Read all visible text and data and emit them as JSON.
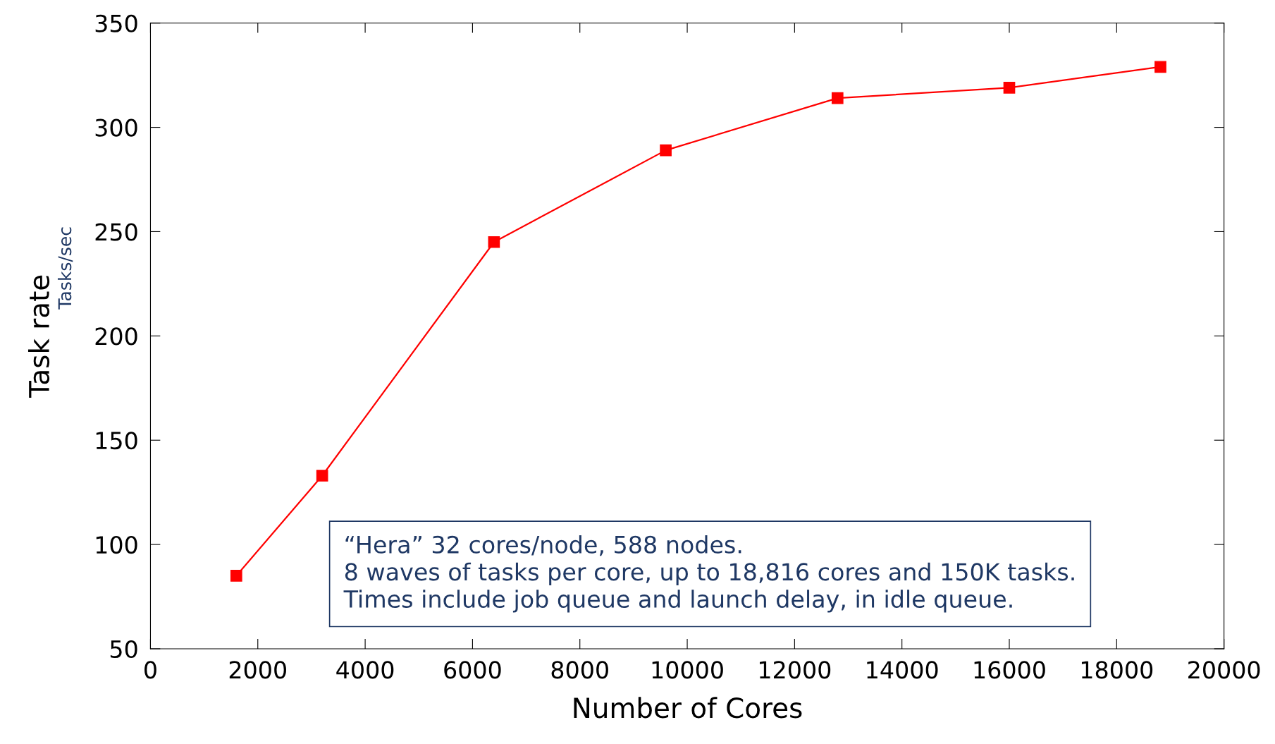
{
  "chart_data": {
    "type": "line",
    "xlabel": "Number of Cores",
    "ylabel": "Task rate",
    "x": [
      1600,
      3200,
      6400,
      9600,
      12800,
      16000,
      18816
    ],
    "series": [
      {
        "color": "#ff0000",
        "values": [
          85,
          133,
          245,
          289,
          314,
          319,
          329
        ]
      }
    ],
    "marker": "square",
    "line_style": "solid",
    "grid": false,
    "legend": false,
    "xlim": [
      0,
      20000
    ],
    "xticks": [
      0,
      2000,
      4000,
      6000,
      8000,
      10000,
      12000,
      14000,
      16000,
      18000,
      20000
    ],
    "ylim": [
      50,
      350
    ],
    "yticks": [
      50,
      100,
      150,
      200,
      250,
      300,
      350
    ],
    "annotations": [
      "Tasks/sec",
      "“Hera” 32 cores/node, 588 nodes.\n8 waves of tasks per core, up to 18,816 cores and 150K tasks.\nTimes include job queue and launch delay, in idle queue."
    ]
  }
}
